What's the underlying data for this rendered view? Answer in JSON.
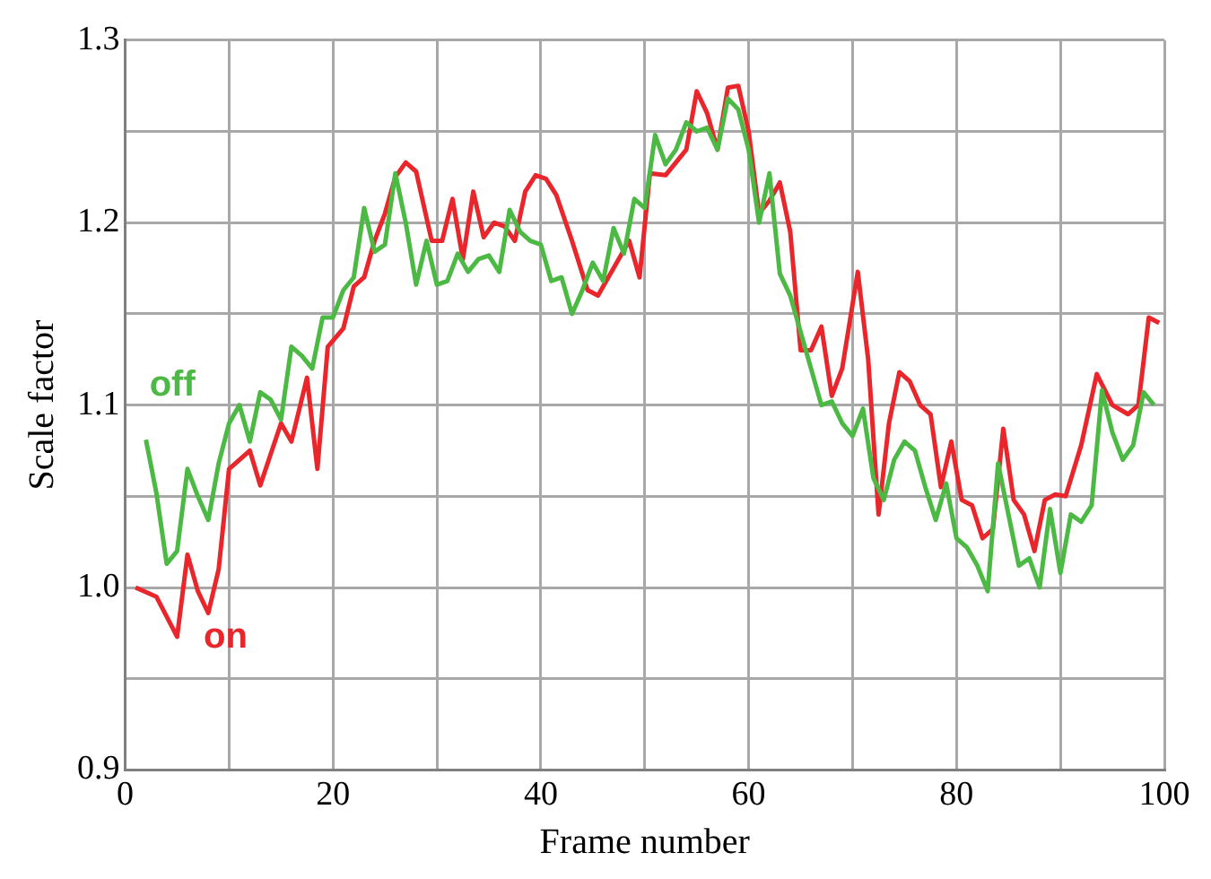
{
  "chart_data": {
    "type": "line",
    "xlabel": "Frame number",
    "ylabel": "Scale factor",
    "xlim": [
      0,
      100
    ],
    "xticks": [
      0,
      {
        "value": 10,
        "label": null
      },
      20,
      {
        "value": 30,
        "label": null
      },
      40,
      {
        "value": 50,
        "label": null
      },
      60,
      {
        "value": 70,
        "label": null
      },
      80,
      {
        "value": 90,
        "label": null
      },
      100
    ],
    "ylim": [
      0.9,
      1.3
    ],
    "yticks": [
      0.9,
      {
        "value": 0.95,
        "label": null
      },
      {
        "value": 1,
        "label": "1.0"
      },
      {
        "value": 1.05,
        "label": null
      },
      1.1,
      {
        "value": 1.15,
        "label": null
      },
      1.2,
      {
        "value": 1.25,
        "label": null
      },
      1.3
    ],
    "grid": true,
    "legend": false,
    "marker": "none",
    "line_style": "solid",
    "series": [
      {
        "name": "off",
        "color": "#4cb944",
        "x": [
          2,
          3,
          4,
          5,
          6,
          7,
          8,
          9,
          10,
          11,
          12,
          13,
          14,
          15,
          16,
          17,
          18,
          19,
          20,
          21,
          22,
          23,
          24,
          25,
          26,
          27,
          28,
          29,
          30,
          31,
          32,
          33,
          34,
          35,
          36,
          37,
          38,
          39,
          40,
          41,
          42,
          43,
          44,
          45,
          46,
          47,
          48,
          49,
          50,
          51,
          52,
          53,
          54,
          55,
          56,
          57,
          58,
          59,
          60,
          61,
          62,
          63,
          64,
          65,
          66,
          67,
          68,
          69,
          70,
          71,
          72,
          73,
          74,
          75,
          76,
          77,
          78,
          79,
          80,
          81,
          82,
          83,
          84,
          85,
          86,
          87,
          88,
          89,
          90,
          91,
          92,
          93,
          94,
          95,
          96,
          97,
          98,
          99
        ],
        "values": [
          1.081,
          1.052,
          1.013,
          1.02,
          1.065,
          1.05,
          1.037,
          1.068,
          1.09,
          1.1,
          1.08,
          1.107,
          1.103,
          1.092,
          1.132,
          1.127,
          1.12,
          1.148,
          1.148,
          1.163,
          1.17,
          1.208,
          1.184,
          1.188,
          1.227,
          1.2,
          1.166,
          1.19,
          1.166,
          1.168,
          1.183,
          1.173,
          1.18,
          1.182,
          1.173,
          1.207,
          1.195,
          1.19,
          1.188,
          1.168,
          1.17,
          1.15,
          1.163,
          1.178,
          1.168,
          1.197,
          1.183,
          1.213,
          1.208,
          1.248,
          1.232,
          1.24,
          1.255,
          1.25,
          1.252,
          1.24,
          1.268,
          1.262,
          1.24,
          1.2,
          1.227,
          1.172,
          1.16,
          1.14,
          1.12,
          1.1,
          1.102,
          1.09,
          1.083,
          1.098,
          1.06,
          1.048,
          1.07,
          1.08,
          1.075,
          1.055,
          1.037,
          1.057,
          1.027,
          1.022,
          1.012,
          0.998,
          1.068,
          1.04,
          1.012,
          1.016,
          1.0,
          1.043,
          1.008,
          1.04,
          1.036,
          1.045,
          1.108,
          1.085,
          1.07,
          1.078,
          1.107,
          1.1
        ]
      },
      {
        "name": "on",
        "color": "#e8262b",
        "x": [
          1,
          3,
          5,
          6,
          7,
          8,
          9,
          10,
          12,
          13,
          15,
          16,
          17.5,
          18.5,
          19.5,
          21,
          22,
          23,
          24,
          25,
          26,
          27,
          28,
          29.5,
          30.5,
          31.5,
          32.5,
          33.5,
          34.5,
          35.5,
          36.5,
          37.5,
          38.5,
          39.5,
          40.5,
          41.5,
          43,
          44.5,
          45.5,
          47,
          48.5,
          49.5,
          50.5,
          52,
          53,
          54,
          55,
          56,
          57,
          58,
          59,
          60,
          61,
          62,
          63,
          64,
          65,
          66,
          67,
          68,
          69,
          70.5,
          71.5,
          72.5,
          73.5,
          74.5,
          75.5,
          76.5,
          77.5,
          78.5,
          79.5,
          80.5,
          81.5,
          82.5,
          83.5,
          84.5,
          85.5,
          86.5,
          87.5,
          88.5,
          89.5,
          90.5,
          92,
          93.5,
          95,
          96.5,
          97.5,
          98.5,
          99.5
        ],
        "values": [
          1.0,
          0.995,
          0.973,
          1.018,
          0.998,
          0.986,
          1.01,
          1.065,
          1.075,
          1.056,
          1.09,
          1.08,
          1.115,
          1.065,
          1.132,
          1.142,
          1.165,
          1.17,
          1.19,
          1.205,
          1.225,
          1.233,
          1.228,
          1.19,
          1.19,
          1.213,
          1.18,
          1.217,
          1.192,
          1.2,
          1.198,
          1.19,
          1.217,
          1.226,
          1.224,
          1.215,
          1.19,
          1.163,
          1.16,
          1.175,
          1.19,
          1.17,
          1.227,
          1.226,
          1.233,
          1.24,
          1.272,
          1.26,
          1.24,
          1.274,
          1.275,
          1.25,
          1.205,
          1.212,
          1.222,
          1.195,
          1.13,
          1.13,
          1.143,
          1.105,
          1.12,
          1.173,
          1.125,
          1.04,
          1.09,
          1.118,
          1.113,
          1.1,
          1.095,
          1.055,
          1.08,
          1.048,
          1.045,
          1.027,
          1.032,
          1.087,
          1.048,
          1.04,
          1.02,
          1.048,
          1.051,
          1.05,
          1.078,
          1.117,
          1.1,
          1.095,
          1.1,
          1.148,
          1.145
        ]
      }
    ]
  }
}
